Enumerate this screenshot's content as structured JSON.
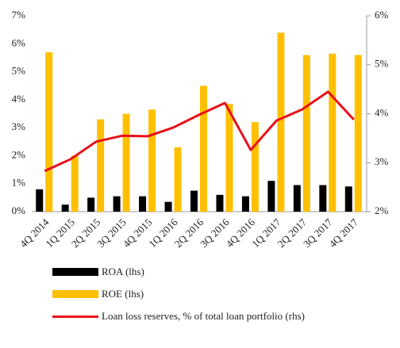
{
  "chart_data": {
    "type": "bar",
    "categories": [
      "4Q 2014",
      "1Q 2015",
      "2Q 2015",
      "3Q 2015",
      "4Q 2015",
      "1Q 2016",
      "2Q 2016",
      "3Q 2016",
      "4Q 2016",
      "1Q 2017",
      "2Q 2017",
      "3Q 2017",
      "4Q 2017"
    ],
    "series": [
      {
        "name": "ROA (lhs)",
        "color": "#000000",
        "type": "bar",
        "values": [
          0.8,
          0.25,
          0.5,
          0.55,
          0.55,
          0.35,
          0.75,
          0.6,
          0.55,
          1.1,
          0.95,
          0.95,
          0.9
        ]
      },
      {
        "name": "ROE (lhs)",
        "color": "#ffc000",
        "type": "bar",
        "values": [
          5.7,
          2.0,
          3.3,
          3.5,
          3.65,
          2.3,
          4.5,
          3.85,
          3.2,
          6.4,
          5.6,
          5.65,
          5.6
        ]
      },
      {
        "name": "Loan loss reserves, % of total loan portfolio (rhs)",
        "color": "#e8101a",
        "type": "line",
        "axis": "y2",
        "values": [
          2.83,
          3.07,
          3.43,
          3.55,
          3.54,
          3.72,
          3.98,
          4.22,
          3.26,
          3.86,
          4.09,
          4.45,
          3.88
        ]
      }
    ],
    "ylim": [
      0,
      7
    ],
    "yticks": [
      {
        "value": 0,
        "label": "0%"
      },
      {
        "value": 1,
        "label": "1%"
      },
      {
        "value": 2,
        "label": "2%"
      },
      {
        "value": 3,
        "label": "3%"
      },
      {
        "value": 4,
        "label": "4%"
      },
      {
        "value": 5,
        "label": "5%"
      },
      {
        "value": 6,
        "label": "6%"
      },
      {
        "value": 7,
        "label": "7%"
      }
    ],
    "y2lim": [
      2,
      6
    ],
    "y2ticks": [
      {
        "value": 2,
        "label": "2%"
      },
      {
        "value": 3,
        "label": "3%"
      },
      {
        "value": 4,
        "label": "4%"
      },
      {
        "value": 5,
        "label": "5%"
      },
      {
        "value": 6,
        "label": "6%"
      }
    ],
    "grid": false
  }
}
